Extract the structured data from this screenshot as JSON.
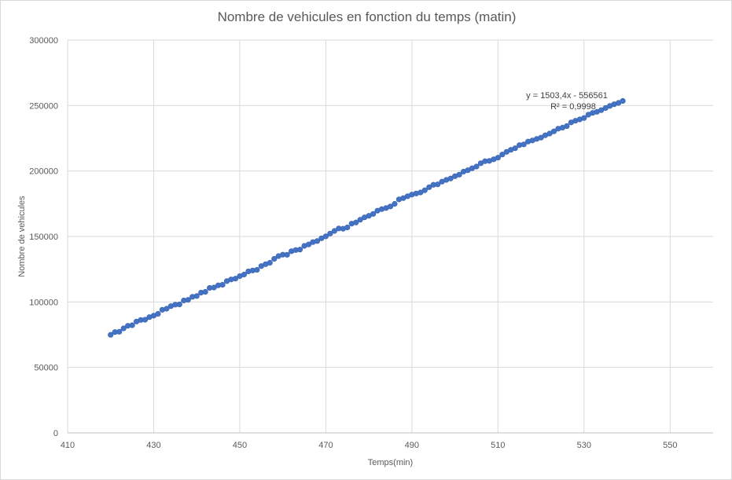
{
  "chart_data": {
    "type": "scatter",
    "title": "Nombre de vehicules en fonction du temps (matin)",
    "xlabel": "Temps(min)",
    "ylabel": "Nombre  de vehicules",
    "xlim": [
      410,
      560
    ],
    "ylim": [
      0,
      300000
    ],
    "x_ticks": [
      "410",
      "430",
      "450",
      "470",
      "490",
      "510",
      "530",
      "550"
    ],
    "y_ticks": [
      "0",
      "50000",
      "100000",
      "150000",
      "200000",
      "250000",
      "300000"
    ],
    "grid": true,
    "legend": "none",
    "marker_color": "#4472c4",
    "trendline": {
      "equation": "y = 1503,4x - 556561",
      "r_squared": "R² = 0,9998",
      "slope": 1503.4,
      "intercept": -556561
    },
    "series": [
      {
        "x": [
          420,
          421,
          422,
          423,
          424,
          425,
          426,
          427,
          428,
          429,
          430,
          431,
          432,
          433,
          434,
          435,
          436,
          437,
          438,
          439,
          440,
          441,
          442,
          443,
          444,
          445,
          446,
          447,
          448,
          449,
          450,
          451,
          452,
          453,
          454,
          455,
          456,
          457,
          458,
          459,
          460,
          461,
          462,
          463,
          464,
          465,
          466,
          467,
          468,
          469,
          470,
          471,
          472,
          473,
          474,
          475,
          476,
          477,
          478,
          479,
          480,
          481,
          482,
          483,
          484,
          485,
          486,
          487,
          488,
          489,
          490,
          491,
          492,
          493,
          494,
          495,
          496,
          497,
          498,
          499,
          500,
          501,
          502,
          503,
          504,
          505,
          506,
          507,
          508,
          509,
          510,
          511,
          512,
          513,
          514,
          515,
          516,
          517,
          518,
          519,
          520,
          521,
          522,
          523,
          524,
          525,
          526,
          527,
          528,
          529,
          530,
          531,
          532,
          533,
          534,
          535,
          536,
          537,
          538,
          539
        ],
        "y": [
          74900,
          77000,
          77200,
          79800,
          81800,
          82200,
          85000,
          86200,
          86400,
          88400,
          89500,
          90900,
          94000,
          94800,
          96800,
          97900,
          98100,
          101100,
          101600,
          103900,
          104500,
          107100,
          107700,
          110700,
          111000,
          112700,
          113100,
          115900,
          117200,
          117800,
          119700,
          120900,
          123300,
          124000,
          124500,
          127400,
          128800,
          129900,
          132900,
          135000,
          136100,
          136000,
          138700,
          139600,
          140000,
          142800,
          143900,
          145700,
          146500,
          148600,
          150100,
          152200,
          154200,
          156100,
          155900,
          156900,
          159800,
          160700,
          162800,
          164600,
          165800,
          167200,
          169700,
          170900,
          171700,
          172900,
          174900,
          178300,
          179300,
          180700,
          182000,
          182800,
          183600,
          185300,
          187600,
          189500,
          189800,
          191900,
          193200,
          194300,
          196000,
          197200,
          199500,
          200600,
          202100,
          203400,
          205900,
          207500,
          207700,
          208900,
          210200,
          212600,
          214600,
          216200,
          217400,
          219800,
          220300,
          222500,
          223300,
          224500,
          225500,
          227300,
          228600,
          230300,
          232300,
          233100,
          234300,
          237100,
          238400,
          239400,
          240500,
          243000,
          244400,
          245200,
          246500,
          248100,
          249700,
          251000,
          252000,
          253500
        ]
      }
    ]
  }
}
